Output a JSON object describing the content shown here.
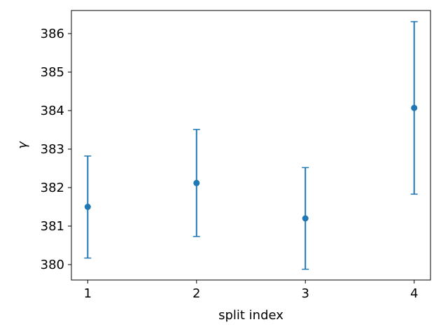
{
  "chart_data": {
    "type": "scatter",
    "title": "",
    "xlabel": "split index",
    "ylabel": "γ",
    "x": [
      1,
      2,
      3,
      4
    ],
    "series": [
      {
        "values": [
          381.5,
          382.12,
          381.2,
          384.07
        ],
        "lower": [
          380.17,
          380.73,
          379.88,
          381.83
        ],
        "upper": [
          382.82,
          383.51,
          382.52,
          386.31
        ]
      }
    ],
    "xlim": [
      0.85,
      4.15
    ],
    "ylim": [
      379.6,
      386.6
    ],
    "xticks": [
      1,
      2,
      3,
      4
    ],
    "yticks": [
      380,
      381,
      382,
      383,
      384,
      385,
      386
    ],
    "grid": false,
    "legend": "none",
    "color": "#1f77b4"
  }
}
